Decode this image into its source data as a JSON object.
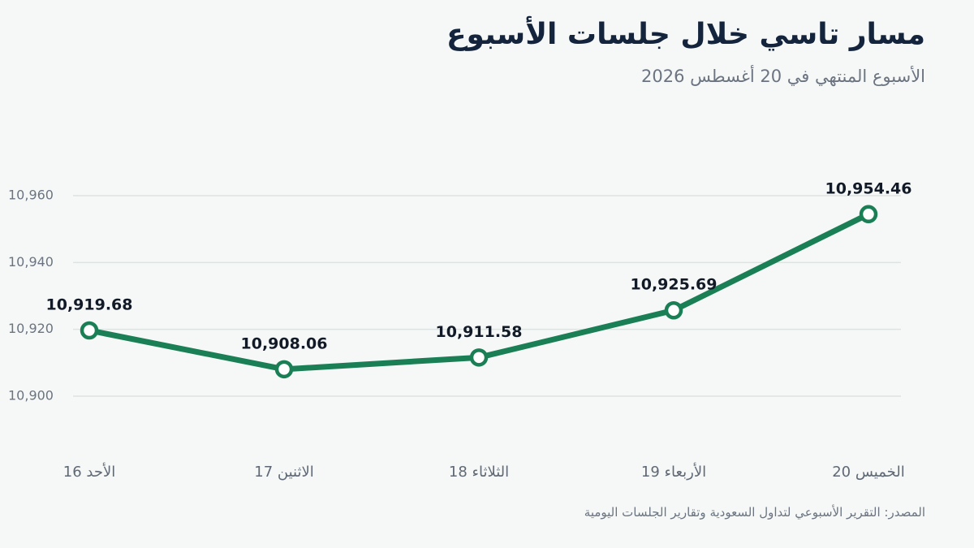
{
  "title": "مسار تاسي خلال جلسات الأسبوع",
  "subtitle": "الأسبوع المنتهي في 20 أغسطس 2026",
  "source": "المصدر: التقرير الأسبوعي لتداول السعودية وتقارير الجلسات اليومية",
  "chart_data": {
    "type": "line",
    "categories": [
      "الأحد 16",
      "الاثنين 17",
      "الثلاثاء 18",
      "الأربعاء 19",
      "الخميس 20"
    ],
    "values": [
      10919.68,
      10908.06,
      10911.58,
      10925.69,
      10954.46
    ],
    "value_labels": [
      "10,919.68",
      "10,908.06",
      "10,911.58",
      "10,925.69",
      "10,954.46"
    ],
    "color": "#1b7f56",
    "ylim": [
      10888,
      10972
    ],
    "yticks": [
      {
        "value": 10900,
        "label": "10,900"
      },
      {
        "value": 10920,
        "label": "10,920"
      },
      {
        "value": 10940,
        "label": "10,940"
      },
      {
        "value": 10960,
        "label": "10,960"
      }
    ],
    "grid": true
  }
}
